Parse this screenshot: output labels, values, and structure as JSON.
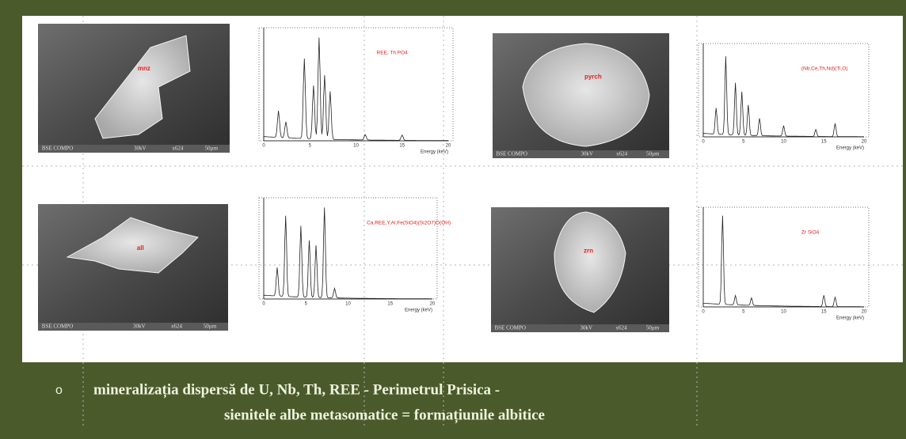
{
  "panels": [
    {
      "image": {
        "label": "mnz",
        "footer": [
          "BSE COMPO",
          "30kV",
          "x624",
          "50µm"
        ]
      },
      "spectrum": {
        "formula": "REE, Th PO4",
        "axis_label": "Energy (keV)",
        "ticks": [
          "0",
          "5",
          "10",
          "15",
          "20"
        ]
      }
    },
    {
      "image": {
        "label": "pyrch",
        "footer": [
          "BSE COMPO",
          "30kV",
          "x624",
          "50µm"
        ]
      },
      "spectrum": {
        "formula": "(Nb,Ce,Th,Nd)(Ti,O)",
        "axis_label": "Energy (keV)",
        "ticks": [
          "0",
          "5",
          "10",
          "15",
          "20"
        ]
      }
    },
    {
      "image": {
        "label": "all",
        "footer": [
          "BSE COMPO",
          "30kV",
          "x624",
          "50µm"
        ]
      },
      "spectrum": {
        "formula": "Ca,REE,Y,Al,Fe(SiO4)(Si2O7)O(OH)",
        "axis_label": "Energy (keV)",
        "ticks": [
          "0",
          "5",
          "10",
          "15",
          "20"
        ]
      }
    },
    {
      "image": {
        "label": "zrn",
        "footer": [
          "BSE COMPO",
          "30kV",
          "x624",
          "50µm"
        ]
      },
      "spectrum": {
        "formula": "Zr SiO4",
        "axis_label": "Energy (keV)",
        "ticks": [
          "0",
          "5",
          "10",
          "15",
          "20"
        ]
      }
    }
  ],
  "caption": {
    "bullet": "o",
    "line1": "mineralizația  dispersă de U, Nb, Th, REE - Perimetrul Prisica  -",
    "line2": "sienitele albe metasomatice = formațiunile albitice"
  }
}
